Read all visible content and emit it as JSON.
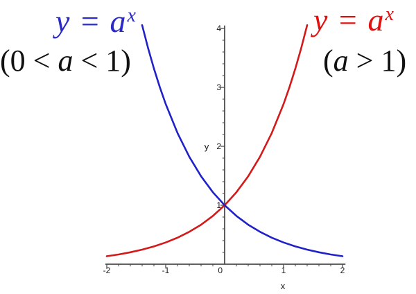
{
  "page": {
    "background": "#ffffff"
  },
  "colors": {
    "increasing_curve": "#d31a1a",
    "increasing_text": "#e30f0f",
    "decreasing_curve": "#2121c8",
    "decreasing_text": "#2a2ac8",
    "axis": "#4c4c4c",
    "tick_text": "#1a1a1a",
    "annotation_text": "#111111"
  },
  "annotations": {
    "decreasing": {
      "formula_main": "y = a",
      "formula_sup": "x",
      "domain_open": "(0 < ",
      "domain_var": "a",
      "domain_close": " < 1)"
    },
    "increasing": {
      "formula_main": "y = a",
      "formula_sup": "x",
      "domain_open": "(",
      "domain_var": "a",
      "domain_close": " > 1)"
    }
  },
  "chart_data": {
    "type": "line",
    "xlabel": "x",
    "ylabel": "y",
    "xlim": [
      -2,
      2.05
    ],
    "ylim": [
      0,
      4.05
    ],
    "x_major_ticks": [
      -2,
      -1,
      0,
      1,
      2
    ],
    "x_tick_labels": [
      "-2",
      "-1",
      "0",
      "1",
      "2"
    ],
    "y_major_ticks": [
      1,
      2,
      3,
      4
    ],
    "y_tick_labels": [
      "1",
      "2",
      "3",
      "4"
    ],
    "minor_tick_step": 0.2,
    "grid": false,
    "legend_position": "none",
    "intersection_point": [
      0,
      1
    ],
    "series": [
      {
        "name": "y = a^x (a > 1)",
        "color_key": "increasing_curve",
        "points": [
          [
            -2,
            0.135
          ],
          [
            -1.8,
            0.165
          ],
          [
            -1.6,
            0.202
          ],
          [
            -1.4,
            0.247
          ],
          [
            -1.2,
            0.301
          ],
          [
            -1,
            0.368
          ],
          [
            -0.8,
            0.449
          ],
          [
            -0.6,
            0.549
          ],
          [
            -0.4,
            0.67
          ],
          [
            -0.2,
            0.819
          ],
          [
            0,
            1
          ],
          [
            0.2,
            1.221
          ],
          [
            0.4,
            1.492
          ],
          [
            0.6,
            1.822
          ],
          [
            0.8,
            2.226
          ],
          [
            1,
            2.718
          ],
          [
            1.1,
            3.004
          ],
          [
            1.2,
            3.32
          ],
          [
            1.3,
            3.669
          ],
          [
            1.4,
            4.055
          ]
        ]
      },
      {
        "name": "y = a^x (0 < a < 1)",
        "color_key": "decreasing_curve",
        "points": [
          [
            -1.4,
            4.055
          ],
          [
            -1.3,
            3.669
          ],
          [
            -1.2,
            3.32
          ],
          [
            -1.1,
            3.004
          ],
          [
            -1,
            2.718
          ],
          [
            -0.8,
            2.226
          ],
          [
            -0.6,
            1.822
          ],
          [
            -0.4,
            1.492
          ],
          [
            -0.2,
            1.221
          ],
          [
            0,
            1
          ],
          [
            0.2,
            0.819
          ],
          [
            0.4,
            0.67
          ],
          [
            0.6,
            0.549
          ],
          [
            0.8,
            0.449
          ],
          [
            1,
            0.368
          ],
          [
            1.2,
            0.301
          ],
          [
            1.4,
            0.247
          ],
          [
            1.6,
            0.202
          ],
          [
            1.8,
            0.165
          ],
          [
            2,
            0.135
          ]
        ]
      }
    ]
  }
}
